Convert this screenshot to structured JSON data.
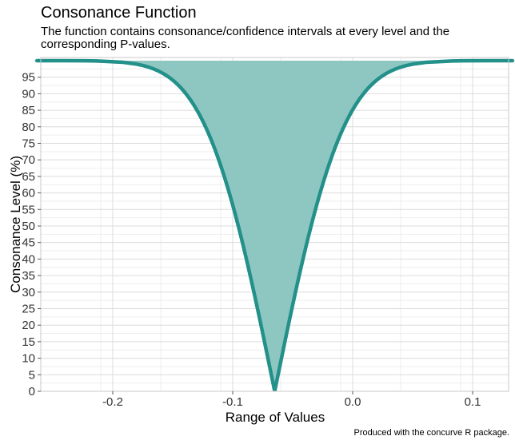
{
  "title": "Consonance Function",
  "subtitle": "The function contains consonance/confidence intervals at every level and the corresponding P-values.",
  "caption": "Produced with the concurve R package.",
  "colors": {
    "fill": "#8ec6c2",
    "line": "#23908a",
    "grid_major": "#dcdcdc",
    "grid_minor": "#eeeeee",
    "panel_border": "#c8c8c8"
  },
  "chart_data": {
    "type": "area",
    "title": "Consonance Function",
    "subtitle": "The function contains consonance/confidence intervals at every level and the corresponding P-values.",
    "xlabel": "Range of Values",
    "ylabel": "Consonance Level (%)",
    "caption": "Produced with the concurve R package.",
    "xlim": [
      -0.26,
      0.13
    ],
    "ylim": [
      0,
      100
    ],
    "x_ticks": [
      -0.2,
      -0.1,
      0.0,
      0.1
    ],
    "x_tick_labels": [
      "-0.2",
      "-0.1",
      "0.0",
      "0.1"
    ],
    "y_ticks": [
      0,
      5,
      10,
      15,
      20,
      25,
      30,
      35,
      40,
      45,
      50,
      55,
      60,
      65,
      70,
      75,
      80,
      85,
      90,
      95
    ],
    "y_tick_labels": [
      "0",
      "5",
      "10",
      "15",
      "20",
      "25",
      "30",
      "35",
      "40",
      "45",
      "50",
      "55",
      "60",
      "65",
      "70",
      "75",
      "80",
      "85",
      "90",
      "95"
    ],
    "grid": true,
    "point_estimate": -0.065,
    "series": [
      {
        "level": [
          0,
          10,
          20,
          30,
          40,
          50,
          60,
          70,
          80,
          90,
          95,
          99,
          99.9
        ],
        "lower": [
          -0.065,
          -0.0697,
          -0.0746,
          -0.0796,
          -0.085,
          -0.0912,
          -0.0983,
          -0.107,
          -0.1186,
          -0.1371,
          -0.1532,
          -0.1846,
          -0.2205
        ],
        "upper": [
          -0.065,
          -0.0603,
          -0.0554,
          -0.0504,
          -0.045,
          -0.0388,
          -0.0317,
          -0.023,
          -0.0114,
          0.0071,
          0.0232,
          0.0546,
          0.0905
        ]
      }
    ]
  }
}
